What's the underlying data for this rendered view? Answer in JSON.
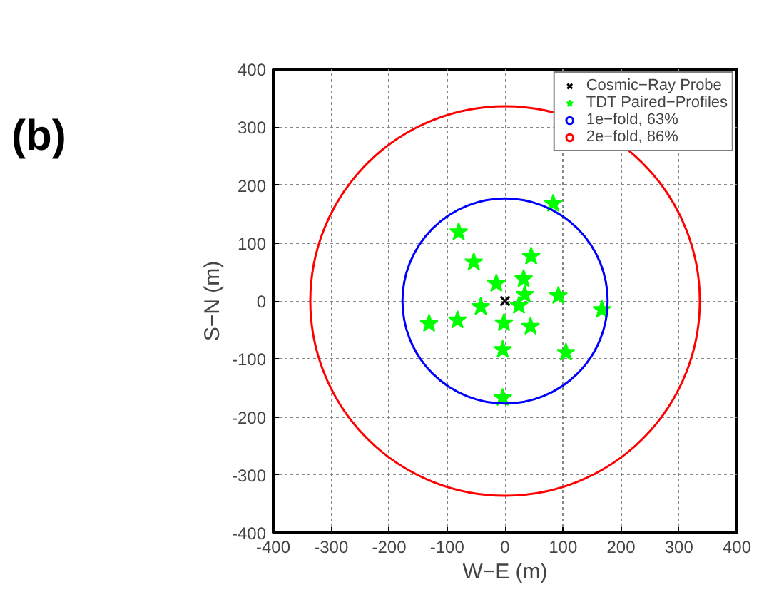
{
  "chart_data": {
    "type": "scatter",
    "xlabel": "W−E (m)",
    "ylabel": "S−N (m)",
    "annotations": [
      "(b)"
    ],
    "xlim": [
      -400,
      400
    ],
    "ylim": [
      -400,
      400
    ],
    "xticks": [
      -400,
      -300,
      -200,
      -100,
      0,
      100,
      200,
      300,
      400
    ],
    "yticks": [
      -400,
      -300,
      -200,
      -100,
      0,
      100,
      200,
      300,
      400
    ],
    "grid": true,
    "legend": "top right",
    "series": [
      {
        "name": "Cosmic−Ray Probe",
        "type": "scatter",
        "marker": "cross",
        "color": "#000000",
        "x": [
          0
        ],
        "values": [
          0
        ]
      },
      {
        "name": "TDT Paired−Profiles",
        "marker": "star",
        "color": "#00ff00",
        "x": [
          83,
          -80,
          -54,
          45,
          -15,
          32,
          34,
          92,
          24,
          -42,
          167,
          -131,
          -82,
          -2,
          44,
          -4,
          105,
          -4
        ],
        "values": [
          168,
          119,
          67,
          77,
          30,
          38,
          11,
          9,
          -8,
          -10,
          -15,
          -39,
          -33,
          -38,
          -44,
          -84,
          -89,
          -167
        ]
      },
      {
        "name": "1e−fold, 63%",
        "type": "line",
        "color": "#0000ff"
      },
      {
        "name": "2e−fold, 86%",
        "type": "line",
        "color": "#ff0000"
      }
    ]
  }
}
